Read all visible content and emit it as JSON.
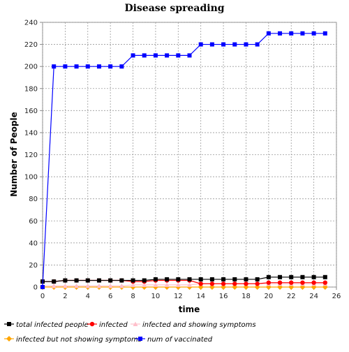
{
  "chart_data": {
    "type": "line",
    "title": "Disease spreading",
    "xlabel": "time",
    "ylabel": "Number of People",
    "xlim": [
      0,
      26
    ],
    "ylim": [
      0,
      240
    ],
    "x_ticks": [
      0,
      2,
      4,
      6,
      8,
      10,
      12,
      14,
      16,
      18,
      20,
      22,
      24,
      26
    ],
    "y_ticks": [
      0,
      20,
      40,
      60,
      80,
      100,
      120,
      140,
      160,
      180,
      200,
      220,
      240
    ],
    "grid": true,
    "legend_position": "bottom",
    "x": [
      0,
      1,
      2,
      3,
      4,
      5,
      6,
      7,
      8,
      9,
      10,
      11,
      12,
      13,
      14,
      15,
      16,
      17,
      18,
      19,
      20,
      21,
      22,
      23,
      24,
      25
    ],
    "series": [
      {
        "name": "total infected people",
        "color": "#000000",
        "marker": "square",
        "values": [
          5,
          5,
          6,
          6,
          6,
          6,
          6,
          6,
          6,
          6,
          7,
          7,
          7,
          7,
          7,
          7,
          7,
          7,
          7,
          7,
          9,
          9,
          9,
          9,
          9,
          9
        ]
      },
      {
        "name": "infected",
        "color": "#ff0000",
        "marker": "circle",
        "values": [
          5,
          5,
          6,
          6,
          6,
          6,
          6,
          6,
          5,
          5,
          6,
          6,
          6,
          6,
          3,
          3,
          3,
          3,
          3,
          3,
          4,
          4,
          4,
          4,
          4,
          4
        ]
      },
      {
        "name": "infected and showing symptoms",
        "color": "#ffc0cb",
        "marker": "triangle",
        "values": [
          1,
          1,
          1,
          1,
          1,
          1,
          1,
          1,
          2,
          2,
          2,
          2,
          2,
          2,
          3,
          3,
          3,
          3,
          3,
          3,
          3,
          3,
          3,
          3,
          3,
          3
        ]
      },
      {
        "name": "infected but not showing symptoms",
        "color": "#ffa500",
        "marker": "diamond",
        "values": [
          0,
          0,
          0,
          0,
          0,
          0,
          0,
          0,
          0,
          0,
          0,
          0,
          0,
          0,
          0,
          0,
          0,
          0,
          0,
          0,
          0,
          0,
          0,
          0,
          0,
          0
        ]
      },
      {
        "name": "num of vaccinated",
        "color": "#0000ff",
        "marker": "square",
        "values": [
          0,
          200,
          200,
          200,
          200,
          200,
          200,
          200,
          210,
          210,
          210,
          210,
          210,
          210,
          220,
          220,
          220,
          220,
          220,
          220,
          230,
          230,
          230,
          230,
          230,
          230
        ]
      }
    ]
  }
}
